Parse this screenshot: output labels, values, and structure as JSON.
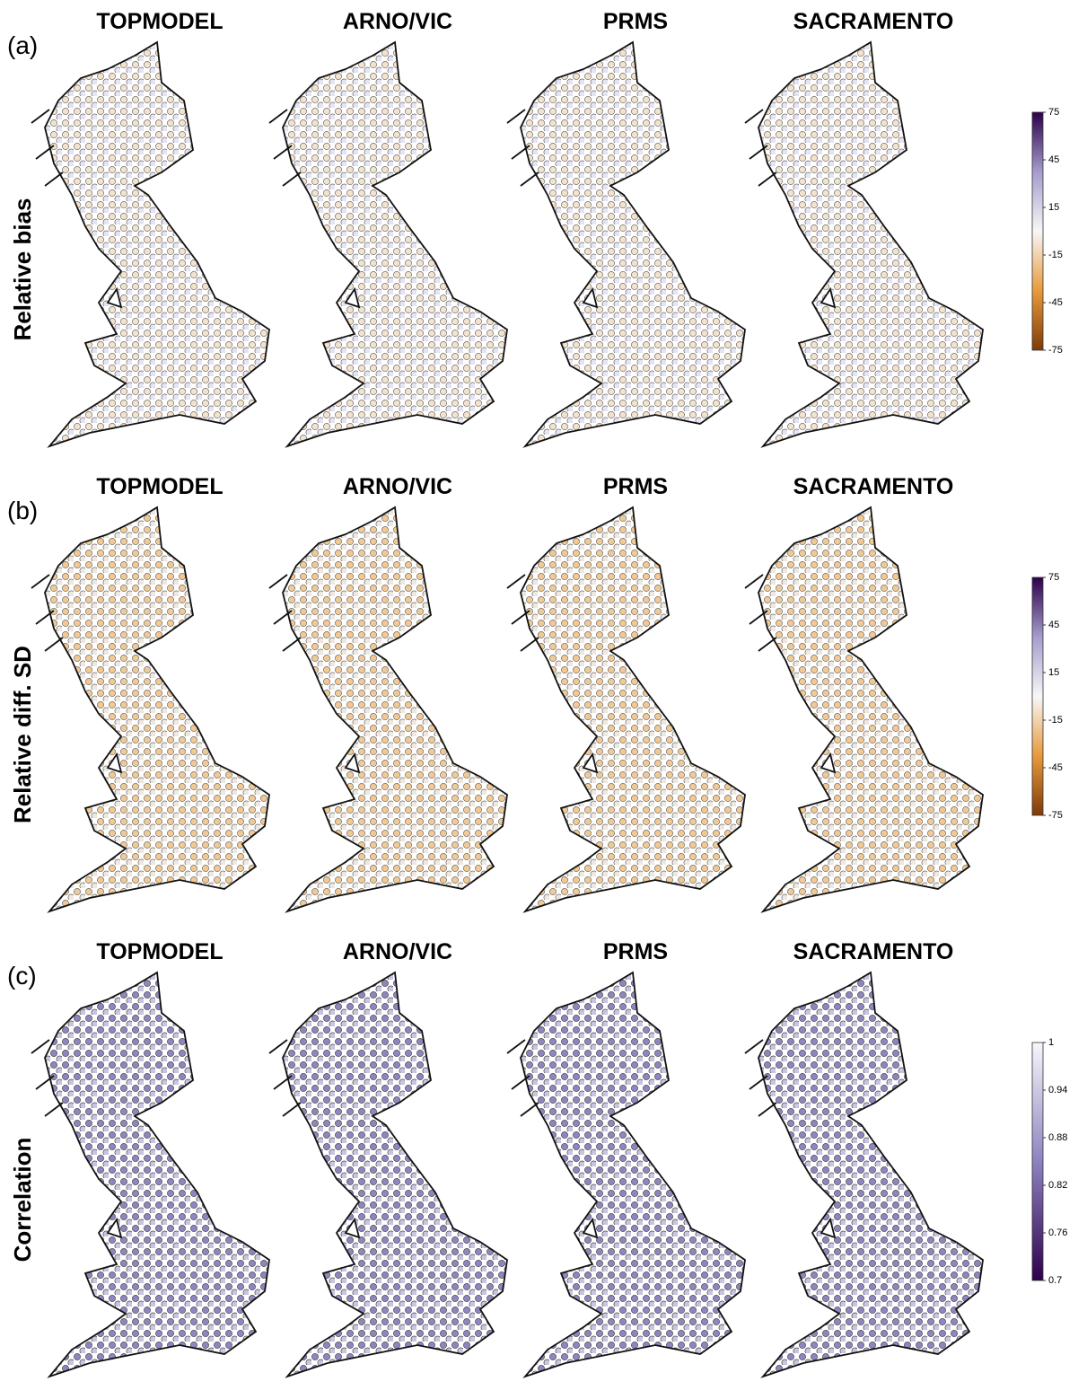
{
  "panels": [
    {
      "label": "(a)",
      "row_title": "Relative bias",
      "models": [
        "TOPMODEL",
        "ARNO/VIC",
        "PRMS",
        "SACRAMENTO"
      ],
      "colorbar": {
        "range": [
          -75,
          75
        ],
        "ticks": [
          75,
          45,
          15,
          -15,
          -45,
          -75
        ]
      }
    },
    {
      "label": "(b)",
      "row_title": "Relative diff. SD",
      "models": [
        "TOPMODEL",
        "ARNO/VIC",
        "PRMS",
        "SACRAMENTO"
      ],
      "colorbar": {
        "range": [
          -75,
          75
        ],
        "ticks": [
          75,
          45,
          15,
          -15,
          -45,
          -75
        ]
      }
    },
    {
      "label": "(c)",
      "row_title": "Correlation",
      "models": [
        "TOPMODEL",
        "ARNO/VIC",
        "PRMS",
        "SACRAMENTO"
      ],
      "colorbar": {
        "range": [
          0.7,
          1
        ],
        "ticks": [
          1,
          0.94,
          0.88,
          0.82,
          0.76,
          0.7
        ]
      }
    }
  ]
}
